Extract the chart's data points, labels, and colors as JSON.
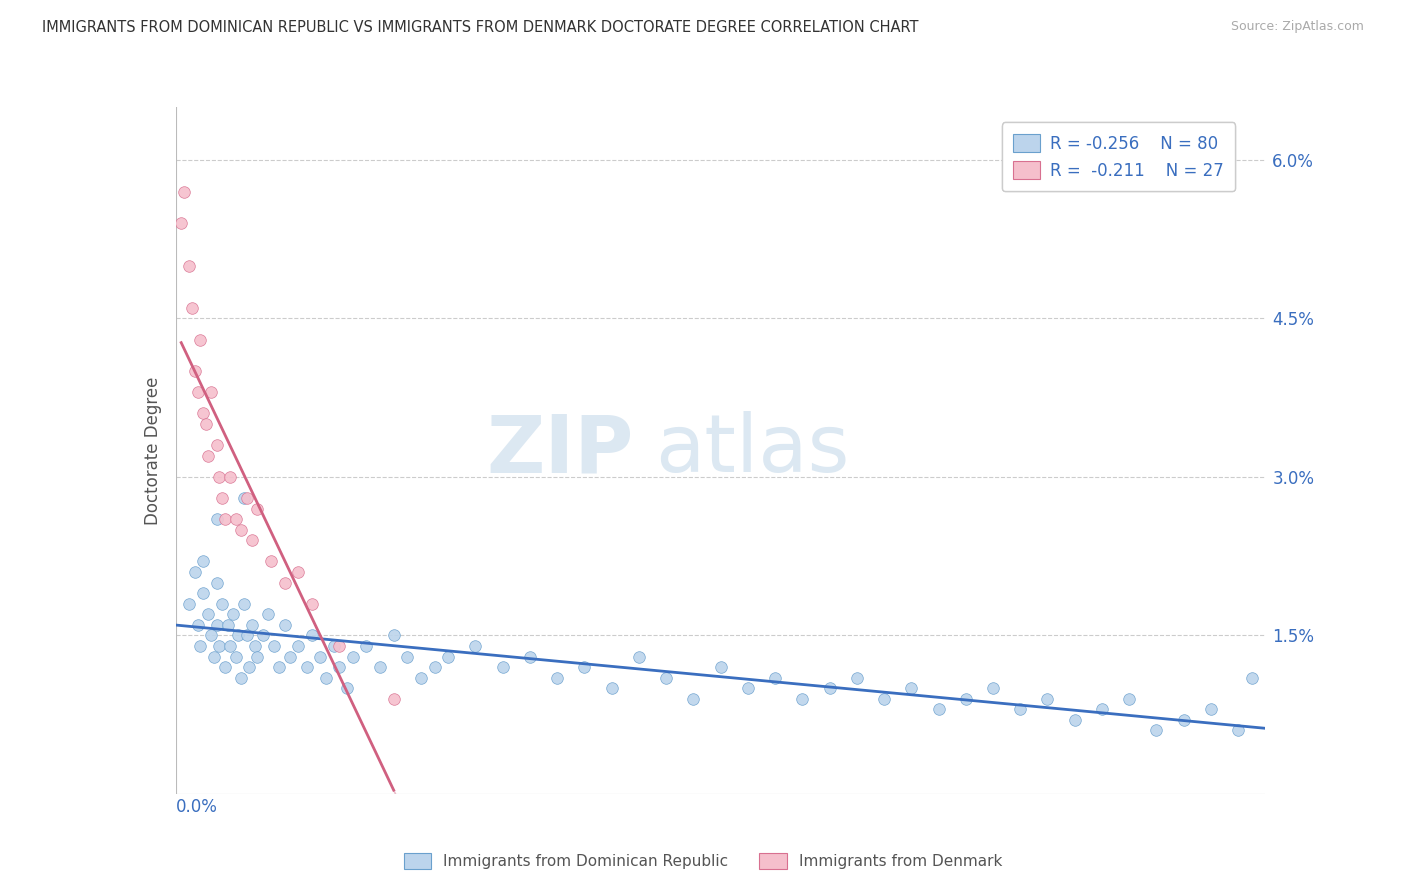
{
  "title": "IMMIGRANTS FROM DOMINICAN REPUBLIC VS IMMIGRANTS FROM DENMARK DOCTORATE DEGREE CORRELATION CHART",
  "source": "Source: ZipAtlas.com",
  "ylabel": "Doctorate Degree",
  "xlim": [
    0.0,
    0.4
  ],
  "ylim": [
    0.0,
    0.065
  ],
  "ytick_vals": [
    0.0,
    0.015,
    0.03,
    0.045,
    0.06
  ],
  "ytick_labels": [
    "",
    "1.5%",
    "3.0%",
    "4.5%",
    "6.0%"
  ],
  "legend_r1": "R = -0.256",
  "legend_n1": "N = 80",
  "legend_r2": "R =  -0.211",
  "legend_n2": "N = 27",
  "color_blue_fill": "#bcd4ec",
  "color_blue_edge": "#6aa0cd",
  "color_blue_line": "#3a6ebf",
  "color_pink_fill": "#f5bfcc",
  "color_pink_edge": "#d87090",
  "color_pink_line": "#d06080",
  "watermark_color": "#dce8f2",
  "blue_x": [
    0.005,
    0.007,
    0.008,
    0.009,
    0.01,
    0.01,
    0.012,
    0.013,
    0.014,
    0.015,
    0.015,
    0.016,
    0.017,
    0.018,
    0.019,
    0.02,
    0.021,
    0.022,
    0.023,
    0.024,
    0.025,
    0.026,
    0.027,
    0.028,
    0.029,
    0.03,
    0.032,
    0.034,
    0.036,
    0.038,
    0.04,
    0.042,
    0.045,
    0.048,
    0.05,
    0.053,
    0.055,
    0.058,
    0.06,
    0.063,
    0.065,
    0.07,
    0.075,
    0.08,
    0.085,
    0.09,
    0.095,
    0.1,
    0.11,
    0.12,
    0.13,
    0.14,
    0.15,
    0.16,
    0.17,
    0.18,
    0.19,
    0.2,
    0.21,
    0.22,
    0.23,
    0.24,
    0.25,
    0.26,
    0.27,
    0.28,
    0.29,
    0.3,
    0.31,
    0.32,
    0.33,
    0.34,
    0.35,
    0.36,
    0.37,
    0.38,
    0.39,
    0.395,
    0.015,
    0.025
  ],
  "blue_y": [
    0.018,
    0.021,
    0.016,
    0.014,
    0.019,
    0.022,
    0.017,
    0.015,
    0.013,
    0.02,
    0.016,
    0.014,
    0.018,
    0.012,
    0.016,
    0.014,
    0.017,
    0.013,
    0.015,
    0.011,
    0.018,
    0.015,
    0.012,
    0.016,
    0.014,
    0.013,
    0.015,
    0.017,
    0.014,
    0.012,
    0.016,
    0.013,
    0.014,
    0.012,
    0.015,
    0.013,
    0.011,
    0.014,
    0.012,
    0.01,
    0.013,
    0.014,
    0.012,
    0.015,
    0.013,
    0.011,
    0.012,
    0.013,
    0.014,
    0.012,
    0.013,
    0.011,
    0.012,
    0.01,
    0.013,
    0.011,
    0.009,
    0.012,
    0.01,
    0.011,
    0.009,
    0.01,
    0.011,
    0.009,
    0.01,
    0.008,
    0.009,
    0.01,
    0.008,
    0.009,
    0.007,
    0.008,
    0.009,
    0.006,
    0.007,
    0.008,
    0.006,
    0.011,
    0.026,
    0.028
  ],
  "pink_x": [
    0.002,
    0.003,
    0.005,
    0.006,
    0.007,
    0.008,
    0.009,
    0.01,
    0.011,
    0.012,
    0.013,
    0.015,
    0.016,
    0.017,
    0.018,
    0.02,
    0.022,
    0.024,
    0.026,
    0.028,
    0.03,
    0.035,
    0.04,
    0.045,
    0.05,
    0.06,
    0.08
  ],
  "pink_y": [
    0.054,
    0.057,
    0.05,
    0.046,
    0.04,
    0.038,
    0.043,
    0.036,
    0.035,
    0.032,
    0.038,
    0.033,
    0.03,
    0.028,
    0.026,
    0.03,
    0.026,
    0.025,
    0.028,
    0.024,
    0.027,
    0.022,
    0.02,
    0.021,
    0.018,
    0.014,
    0.009
  ]
}
